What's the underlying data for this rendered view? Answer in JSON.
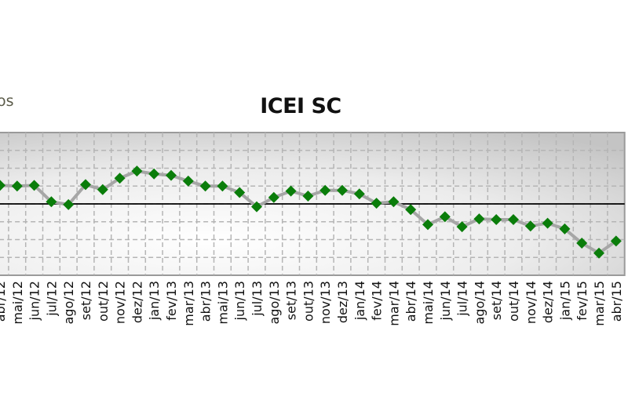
{
  "header": {
    "cut_text": "os"
  },
  "chart_data": {
    "type": "line",
    "title": "ICEI SC",
    "xlabel": "",
    "ylabel": "",
    "ylim": [
      40,
      60
    ],
    "grid": true,
    "reference_line": 50,
    "colors": {
      "marker": "#0a7d0a",
      "line": "#a6a6a6",
      "reference": "#000000"
    },
    "categories": [
      "abr/12",
      "mai/12",
      "jun/12",
      "jul/12",
      "ago/12",
      "set/12",
      "out/12",
      "nov/12",
      "dez/12",
      "jan/13",
      "fev/13",
      "mar/13",
      "abr/13",
      "mai/13",
      "jun/13",
      "jul/13",
      "ago/13",
      "set/13",
      "out/13",
      "nov/13",
      "dez/13",
      "jan/14",
      "fev/14",
      "mar/14",
      "abr/14",
      "mai/14",
      "jun/14",
      "jul/14",
      "ago/14",
      "set/14",
      "out/14",
      "nov/14",
      "dez/14",
      "jan/15",
      "fev/15",
      "mar/15",
      "abr/15"
    ],
    "values": [
      52.6,
      52.5,
      52.6,
      50.3,
      49.9,
      52.7,
      52.0,
      53.6,
      54.6,
      54.2,
      54.0,
      53.2,
      52.5,
      52.5,
      51.6,
      49.6,
      50.9,
      51.8,
      51.1,
      51.9,
      51.9,
      51.4,
      50.1,
      50.3,
      49.2,
      47.1,
      48.2,
      46.8,
      47.9,
      47.8,
      47.8,
      46.9,
      47.3,
      46.5,
      44.5,
      43.1,
      44.8
    ]
  }
}
